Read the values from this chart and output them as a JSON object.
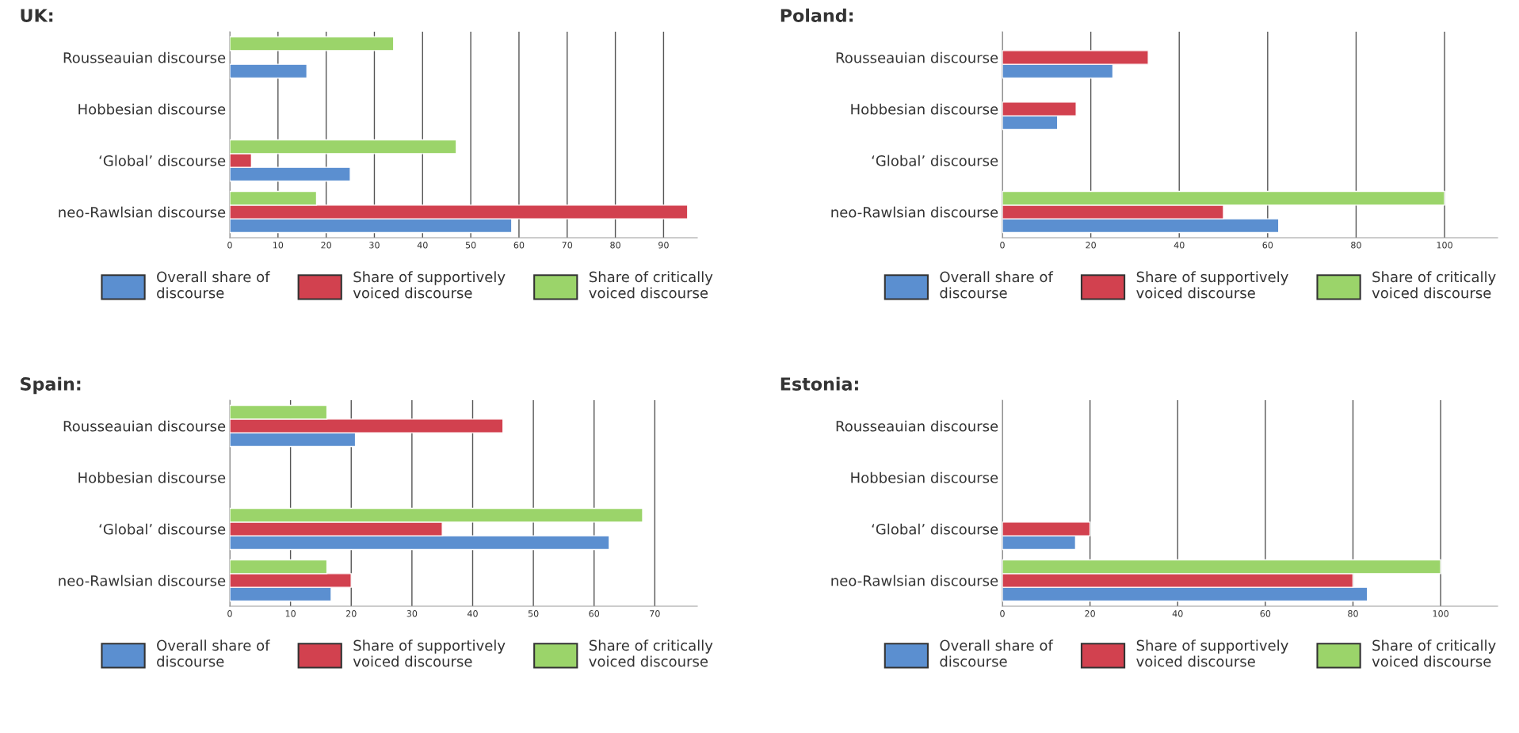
{
  "chart_data": [
    {
      "type": "bar",
      "orientation": "horizontal",
      "title": "UK:",
      "categories": [
        "Rousseauian discourse",
        "Hobbesian discourse",
        "‘Global’ discourse",
        "neo-Rawlsian discourse"
      ],
      "xlim": [
        0,
        97
      ],
      "xticks": [
        0,
        10,
        20,
        30,
        40,
        50,
        60,
        70,
        80,
        90
      ],
      "grid": "x",
      "legend": "bottom",
      "series": [
        {
          "name": "Overall share of discourse",
          "color": "#5b8fd0",
          "values": [
            16,
            null,
            25,
            58.5
          ]
        },
        {
          "name": "Share of supportively voiced discourse",
          "color": "#d2414f",
          "values": [
            null,
            null,
            4.5,
            95
          ]
        },
        {
          "name": "Share of critically voiced discourse",
          "color": "#9bd46a",
          "values": [
            34,
            null,
            47,
            18
          ]
        }
      ]
    },
    {
      "type": "bar",
      "orientation": "horizontal",
      "title": "Poland:",
      "categories": [
        "Rousseauian discourse",
        "Hobbesian discourse",
        "‘Global’ discourse",
        "neo-Rawlsian discourse"
      ],
      "xlim": [
        0,
        112
      ],
      "xticks": [
        0,
        20,
        40,
        60,
        80,
        100
      ],
      "grid": "x",
      "legend": "bottom",
      "series": [
        {
          "name": "Overall share of discourse",
          "color": "#5b8fd0",
          "values": [
            25,
            12.5,
            null,
            62.5
          ]
        },
        {
          "name": "Share of supportively voiced discourse",
          "color": "#d2414f",
          "values": [
            33,
            16.7,
            null,
            50
          ]
        },
        {
          "name": "Share of critically voiced discourse",
          "color": "#9bd46a",
          "values": [
            null,
            null,
            null,
            100
          ]
        }
      ]
    },
    {
      "type": "bar",
      "orientation": "horizontal",
      "title": "Spain:",
      "categories": [
        "Rousseauian discourse",
        "Hobbesian discourse",
        "‘Global’ discourse",
        "neo-Rawlsian discourse"
      ],
      "xlim": [
        0,
        77
      ],
      "xticks": [
        0,
        10,
        20,
        30,
        40,
        50,
        60,
        70
      ],
      "grid": "x",
      "legend": "bottom",
      "series": [
        {
          "name": "Overall share of discourse",
          "color": "#5b8fd0",
          "values": [
            20.7,
            null,
            62.5,
            16.7
          ]
        },
        {
          "name": "Share of supportively voiced discourse",
          "color": "#d2414f",
          "values": [
            45,
            null,
            35,
            20
          ]
        },
        {
          "name": "Share of critically voiced discourse",
          "color": "#9bd46a",
          "values": [
            16,
            null,
            68,
            16
          ]
        }
      ]
    },
    {
      "type": "bar",
      "orientation": "horizontal",
      "title": "Estonia:",
      "categories": [
        "Rousseauian discourse",
        "Hobbesian discourse",
        "‘Global’ discourse",
        "neo-Rawlsian discourse"
      ],
      "xlim": [
        0,
        113
      ],
      "xticks": [
        0,
        20,
        40,
        60,
        80,
        100
      ],
      "grid": "x",
      "legend": "bottom",
      "series": [
        {
          "name": "Overall share of discourse",
          "color": "#5b8fd0",
          "values": [
            null,
            null,
            16.7,
            83.3
          ]
        },
        {
          "name": "Share of supportively voiced discourse",
          "color": "#d2414f",
          "values": [
            null,
            null,
            20,
            80
          ]
        },
        {
          "name": "Share of critically voiced discourse",
          "color": "#9bd46a",
          "values": [
            null,
            null,
            null,
            100
          ]
        }
      ]
    }
  ]
}
